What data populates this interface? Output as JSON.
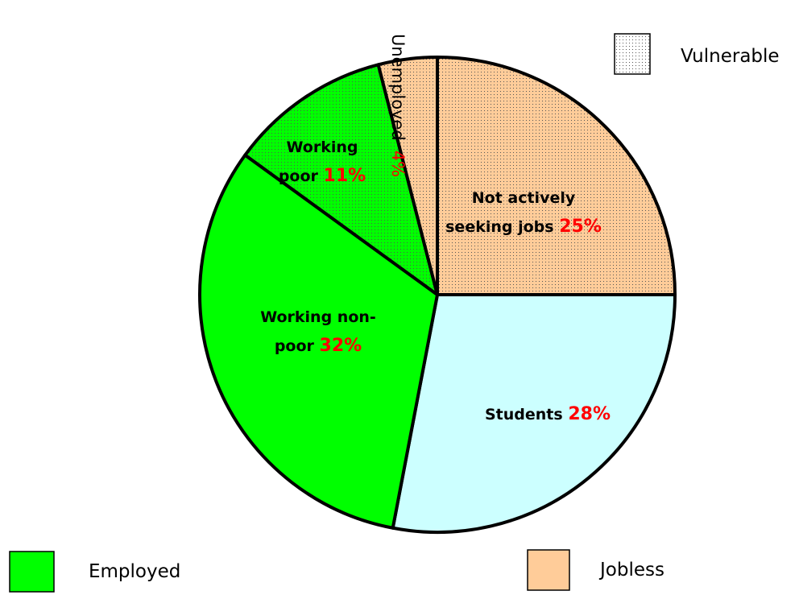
{
  "chart_data": {
    "type": "pie",
    "categories": [
      "Not actively seeking jobs",
      "Students",
      "Working non-poor",
      "Working poor",
      "Unemployed"
    ],
    "values": [
      25,
      28,
      32,
      11,
      4
    ],
    "value_labels": [
      "25%",
      "28%",
      "32%",
      "11%",
      "4%"
    ],
    "colors": [
      "#ffcc99",
      "#ccffff",
      "#00ff00",
      "#00ff00",
      "#ffcc99"
    ],
    "dotted": [
      true,
      false,
      false,
      true,
      true
    ],
    "legend": [
      {
        "name": "Vulnerable",
        "color": "#ffffff",
        "dotted": true
      },
      {
        "name": "Employed",
        "color": "#00ff00",
        "dotted": false
      },
      {
        "name": "Jobless",
        "color": "#ffcc99",
        "dotted": false
      }
    ]
  }
}
